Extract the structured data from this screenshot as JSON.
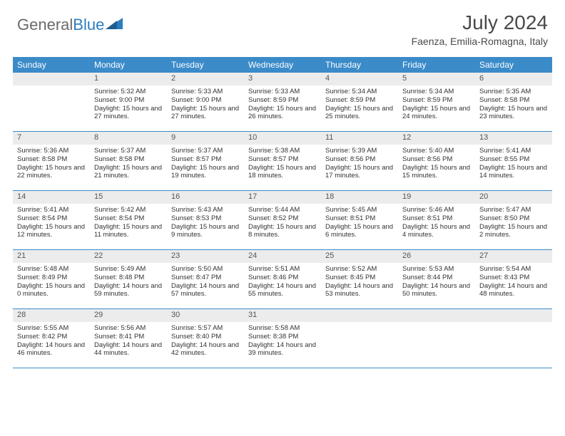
{
  "brand": {
    "name_part1": "General",
    "name_part2": "Blue"
  },
  "title": "July 2024",
  "location": "Faenza, Emilia-Romagna, Italy",
  "colors": {
    "header_bg": "#3b8bc9",
    "header_text": "#ffffff",
    "daynum_bg": "#ececec",
    "body_text": "#333333",
    "rule": "#3b8bc9",
    "logo_gray": "#6a6a6a",
    "logo_blue": "#2d7dc1"
  },
  "days_of_week": [
    "Sunday",
    "Monday",
    "Tuesday",
    "Wednesday",
    "Thursday",
    "Friday",
    "Saturday"
  ],
  "weeks": [
    [
      null,
      {
        "n": "1",
        "sr": "5:32 AM",
        "ss": "9:00 PM",
        "dl": "15 hours and 27 minutes."
      },
      {
        "n": "2",
        "sr": "5:33 AM",
        "ss": "9:00 PM",
        "dl": "15 hours and 27 minutes."
      },
      {
        "n": "3",
        "sr": "5:33 AM",
        "ss": "8:59 PM",
        "dl": "15 hours and 26 minutes."
      },
      {
        "n": "4",
        "sr": "5:34 AM",
        "ss": "8:59 PM",
        "dl": "15 hours and 25 minutes."
      },
      {
        "n": "5",
        "sr": "5:34 AM",
        "ss": "8:59 PM",
        "dl": "15 hours and 24 minutes."
      },
      {
        "n": "6",
        "sr": "5:35 AM",
        "ss": "8:58 PM",
        "dl": "15 hours and 23 minutes."
      }
    ],
    [
      {
        "n": "7",
        "sr": "5:36 AM",
        "ss": "8:58 PM",
        "dl": "15 hours and 22 minutes."
      },
      {
        "n": "8",
        "sr": "5:37 AM",
        "ss": "8:58 PM",
        "dl": "15 hours and 21 minutes."
      },
      {
        "n": "9",
        "sr": "5:37 AM",
        "ss": "8:57 PM",
        "dl": "15 hours and 19 minutes."
      },
      {
        "n": "10",
        "sr": "5:38 AM",
        "ss": "8:57 PM",
        "dl": "15 hours and 18 minutes."
      },
      {
        "n": "11",
        "sr": "5:39 AM",
        "ss": "8:56 PM",
        "dl": "15 hours and 17 minutes."
      },
      {
        "n": "12",
        "sr": "5:40 AM",
        "ss": "8:56 PM",
        "dl": "15 hours and 15 minutes."
      },
      {
        "n": "13",
        "sr": "5:41 AM",
        "ss": "8:55 PM",
        "dl": "15 hours and 14 minutes."
      }
    ],
    [
      {
        "n": "14",
        "sr": "5:41 AM",
        "ss": "8:54 PM",
        "dl": "15 hours and 12 minutes."
      },
      {
        "n": "15",
        "sr": "5:42 AM",
        "ss": "8:54 PM",
        "dl": "15 hours and 11 minutes."
      },
      {
        "n": "16",
        "sr": "5:43 AM",
        "ss": "8:53 PM",
        "dl": "15 hours and 9 minutes."
      },
      {
        "n": "17",
        "sr": "5:44 AM",
        "ss": "8:52 PM",
        "dl": "15 hours and 8 minutes."
      },
      {
        "n": "18",
        "sr": "5:45 AM",
        "ss": "8:51 PM",
        "dl": "15 hours and 6 minutes."
      },
      {
        "n": "19",
        "sr": "5:46 AM",
        "ss": "8:51 PM",
        "dl": "15 hours and 4 minutes."
      },
      {
        "n": "20",
        "sr": "5:47 AM",
        "ss": "8:50 PM",
        "dl": "15 hours and 2 minutes."
      }
    ],
    [
      {
        "n": "21",
        "sr": "5:48 AM",
        "ss": "8:49 PM",
        "dl": "15 hours and 0 minutes."
      },
      {
        "n": "22",
        "sr": "5:49 AM",
        "ss": "8:48 PM",
        "dl": "14 hours and 59 minutes."
      },
      {
        "n": "23",
        "sr": "5:50 AM",
        "ss": "8:47 PM",
        "dl": "14 hours and 57 minutes."
      },
      {
        "n": "24",
        "sr": "5:51 AM",
        "ss": "8:46 PM",
        "dl": "14 hours and 55 minutes."
      },
      {
        "n": "25",
        "sr": "5:52 AM",
        "ss": "8:45 PM",
        "dl": "14 hours and 53 minutes."
      },
      {
        "n": "26",
        "sr": "5:53 AM",
        "ss": "8:44 PM",
        "dl": "14 hours and 50 minutes."
      },
      {
        "n": "27",
        "sr": "5:54 AM",
        "ss": "8:43 PM",
        "dl": "14 hours and 48 minutes."
      }
    ],
    [
      {
        "n": "28",
        "sr": "5:55 AM",
        "ss": "8:42 PM",
        "dl": "14 hours and 46 minutes."
      },
      {
        "n": "29",
        "sr": "5:56 AM",
        "ss": "8:41 PM",
        "dl": "14 hours and 44 minutes."
      },
      {
        "n": "30",
        "sr": "5:57 AM",
        "ss": "8:40 PM",
        "dl": "14 hours and 42 minutes."
      },
      {
        "n": "31",
        "sr": "5:58 AM",
        "ss": "8:38 PM",
        "dl": "14 hours and 39 minutes."
      },
      null,
      null,
      null
    ]
  ],
  "labels": {
    "sunrise_prefix": "Sunrise: ",
    "sunset_prefix": "Sunset: ",
    "daylight_prefix": "Daylight: "
  }
}
